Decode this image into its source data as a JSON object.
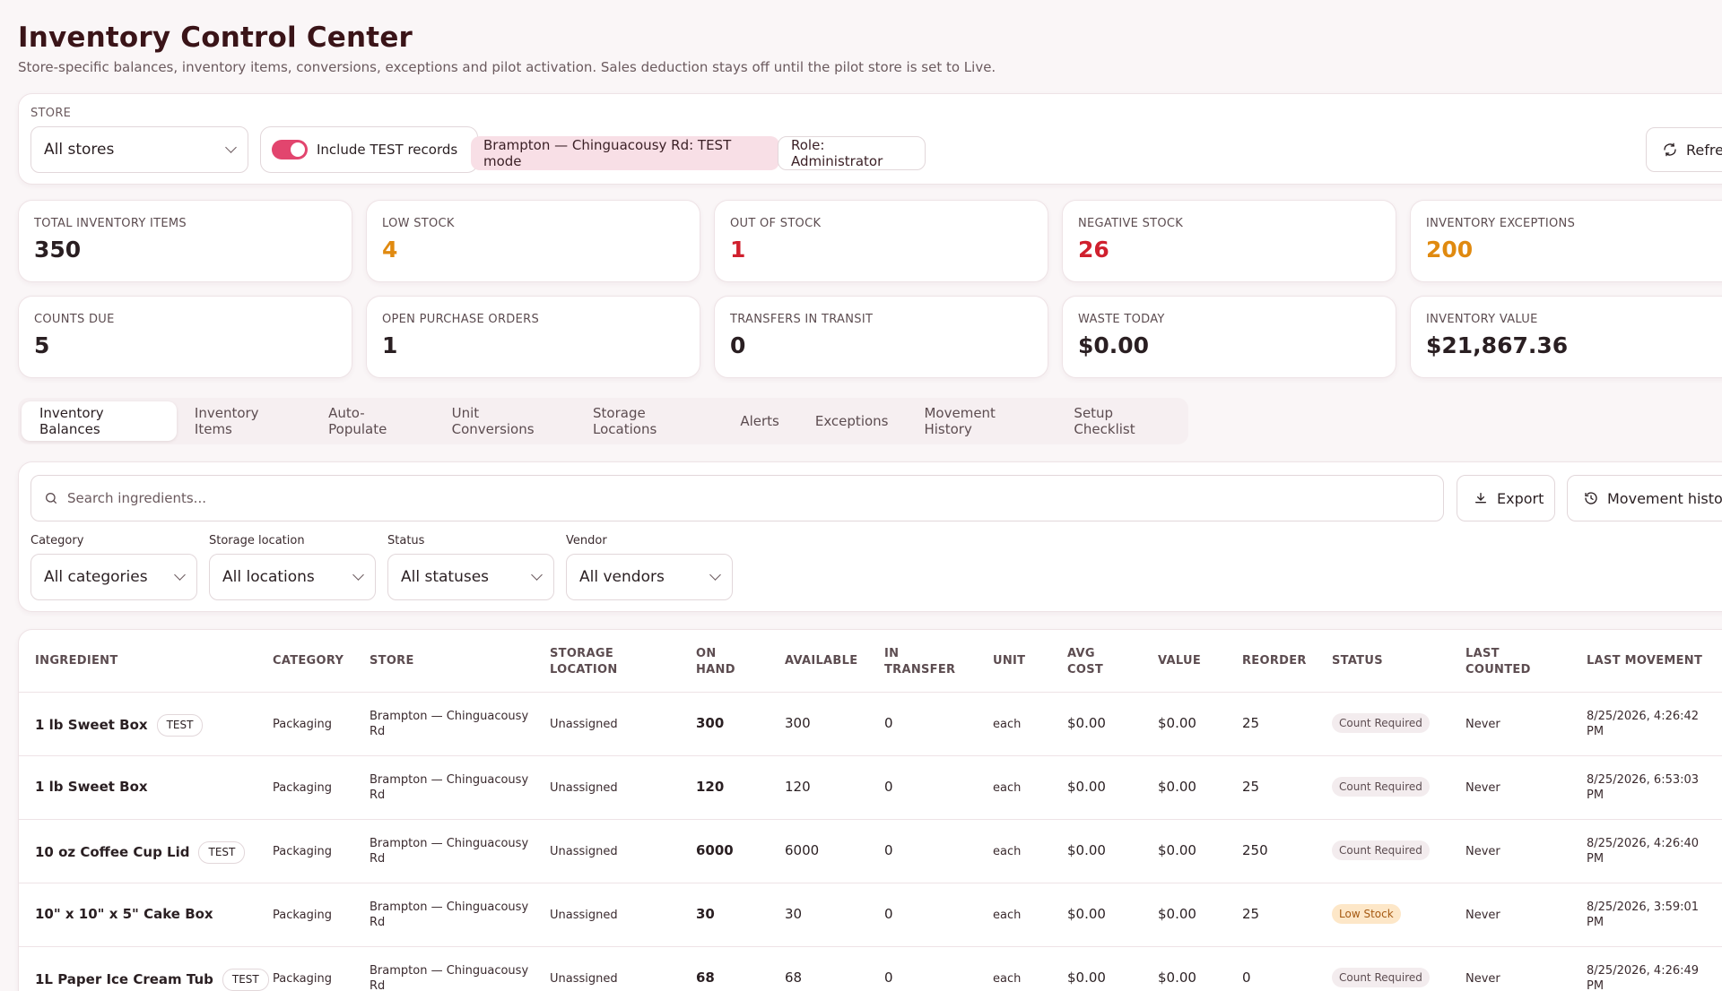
{
  "page": {
    "title": "Inventory Control Center",
    "subtitle": "Store-specific balances, inventory items, conversions, exceptions and pilot activation. Sales deduction stays off until the pilot store is set to Live."
  },
  "toolbar": {
    "store_label": "STORE",
    "store_value": "All stores",
    "include_test_label": "Include TEST records",
    "include_test_on": true,
    "test_mode_chip": "Brampton — Chinguacousy Rd: TEST mode",
    "role_chip": "Role: Administrator",
    "refresh_label": "Refresh"
  },
  "stats": [
    {
      "label": "TOTAL INVENTORY ITEMS",
      "value": "350",
      "color": "#2a1f22"
    },
    {
      "label": "LOW STOCK",
      "value": "4",
      "color": "#e08a10"
    },
    {
      "label": "OUT OF STOCK",
      "value": "1",
      "color": "#d0202e"
    },
    {
      "label": "NEGATIVE STOCK",
      "value": "26",
      "color": "#d0202e"
    },
    {
      "label": "INVENTORY EXCEPTIONS",
      "value": "200",
      "color": "#e08a10"
    },
    {
      "label": "COUNTS DUE",
      "value": "5",
      "color": "#2a1f22"
    },
    {
      "label": "OPEN PURCHASE ORDERS",
      "value": "1",
      "color": "#2a1f22"
    },
    {
      "label": "TRANSFERS IN TRANSIT",
      "value": "0",
      "color": "#2a1f22"
    },
    {
      "label": "WASTE TODAY",
      "value": "$0.00",
      "color": "#2a1f22"
    },
    {
      "label": "INVENTORY VALUE",
      "value": "$21,867.36",
      "color": "#2a1f22"
    }
  ],
  "tabs": [
    {
      "label": "Inventory Balances",
      "active": true
    },
    {
      "label": "Inventory Items"
    },
    {
      "label": "Auto-Populate"
    },
    {
      "label": "Unit Conversions"
    },
    {
      "label": "Storage Locations"
    },
    {
      "label": "Alerts"
    },
    {
      "label": "Exceptions"
    },
    {
      "label": "Movement History"
    },
    {
      "label": "Setup Checklist"
    }
  ],
  "filters": {
    "search_placeholder": "Search ingredients...",
    "export_label": "Export",
    "movement_history_label": "Movement history",
    "category": {
      "label": "Category",
      "value": "All categories"
    },
    "storage": {
      "label": "Storage location",
      "value": "All locations"
    },
    "status": {
      "label": "Status",
      "value": "All statuses"
    },
    "vendor": {
      "label": "Vendor",
      "value": "All vendors"
    }
  },
  "table": {
    "headers": {
      "ingredient": "INGREDIENT",
      "category": "CATEGORY",
      "store": "STORE",
      "storage_1": "STORAGE",
      "storage_2": "LOCATION",
      "onhand_1": "ON",
      "onhand_2": "HAND",
      "available": "AVAILABLE",
      "transfer_1": "IN",
      "transfer_2": "TRANSFER",
      "unit": "UNIT",
      "avgcost_1": "AVG",
      "avgcost_2": "COST",
      "value": "VALUE",
      "reorder": "REORDER",
      "status": "STATUS",
      "lastcounted_1": "LAST",
      "lastcounted_2": "COUNTED",
      "lastmovement": "LAST MOVEMENT"
    },
    "rows": [
      {
        "name": "1 lb Sweet Box",
        "test": "TEST",
        "category": "Packaging",
        "store_1": "Brampton — Chinguacousy",
        "store_2": "Rd",
        "storage": "Unassigned",
        "on_hand": "300",
        "available": "300",
        "in_transfer": "0",
        "unit": "each",
        "avg_cost": "$0.00",
        "value": "$0.00",
        "reorder": "25",
        "status": "Count Required",
        "last_counted": "Never",
        "last_movement_1": "8/25/2026, 4:26:42",
        "last_movement_2": "PM"
      },
      {
        "name": "1 lb Sweet Box",
        "test": "",
        "category": "Packaging",
        "store_1": "Brampton — Chinguacousy",
        "store_2": "Rd",
        "storage": "Unassigned",
        "on_hand": "120",
        "available": "120",
        "in_transfer": "0",
        "unit": "each",
        "avg_cost": "$0.00",
        "value": "$0.00",
        "reorder": "25",
        "status": "Count Required",
        "last_counted": "Never",
        "last_movement_1": "8/25/2026, 6:53:03",
        "last_movement_2": "PM"
      },
      {
        "name": "10 oz Coffee Cup Lid",
        "test": "TEST",
        "category": "Packaging",
        "store_1": "Brampton — Chinguacousy",
        "store_2": "Rd",
        "storage": "Unassigned",
        "on_hand": "6000",
        "available": "6000",
        "in_transfer": "0",
        "unit": "each",
        "avg_cost": "$0.00",
        "value": "$0.00",
        "reorder": "250",
        "status": "Count Required",
        "last_counted": "Never",
        "last_movement_1": "8/25/2026, 4:26:40",
        "last_movement_2": "PM"
      },
      {
        "name": "10\" x 10\" x 5\" Cake Box",
        "test": "",
        "category": "Packaging",
        "store_1": "Brampton — Chinguacousy",
        "store_2": "Rd",
        "storage": "Unassigned",
        "on_hand": "30",
        "available": "30",
        "in_transfer": "0",
        "unit": "each",
        "avg_cost": "$0.00",
        "value": "$0.00",
        "reorder": "25",
        "status": "Low Stock",
        "last_counted": "Never",
        "last_movement_1": "8/25/2026, 3:59:01",
        "last_movement_2": "PM"
      },
      {
        "name": "1L Paper Ice Cream Tub",
        "test": "TEST",
        "category": "Packaging",
        "store_1": "Brampton — Chinguacousy",
        "store_2": "Rd",
        "storage": "Unassigned",
        "on_hand": "68",
        "available": "68",
        "in_transfer": "0",
        "unit": "each",
        "avg_cost": "$0.00",
        "value": "$0.00",
        "reorder": "0",
        "status": "Count Required",
        "last_counted": "Never",
        "last_movement_1": "8/25/2026, 4:26:49",
        "last_movement_2": "PM"
      }
    ]
  },
  "colors": {
    "accent": "#e2456e",
    "test_chip_bg": "#f8dfe6",
    "warning": "#e08a10",
    "danger": "#d0202e"
  }
}
